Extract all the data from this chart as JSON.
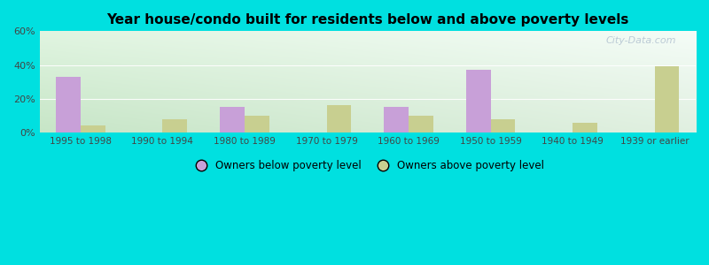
{
  "title": "Year house/condo built for residents below and above poverty levels",
  "categories": [
    "1995 to 1998",
    "1990 to 1994",
    "1980 to 1989",
    "1970 to 1979",
    "1960 to 1969",
    "1950 to 1959",
    "1940 to 1949",
    "1939 or earlier"
  ],
  "below_poverty": [
    33,
    0,
    15,
    0,
    15,
    37,
    0,
    0
  ],
  "above_poverty": [
    4,
    8,
    10,
    16,
    10,
    8,
    6,
    39
  ],
  "below_color": "#c8a0d8",
  "above_color": "#c8cf90",
  "ylim": [
    0,
    60
  ],
  "yticks": [
    0,
    20,
    40,
    60
  ],
  "ytick_labels": [
    "0%",
    "20%",
    "40%",
    "60%"
  ],
  "background_outer": "#00e0e0",
  "bg_top_left": "#d8eedc",
  "bg_top_right": "#f0f8f4",
  "bg_bottom_left": "#c8e8c0",
  "bg_bottom_right": "#e0f0e8",
  "legend_below": "Owners below poverty level",
  "legend_above": "Owners above poverty level",
  "bar_width": 0.3,
  "watermark": "City-Data.com",
  "title_fontsize": 11,
  "tick_fontsize": 7.5,
  "legend_fontsize": 8.5
}
